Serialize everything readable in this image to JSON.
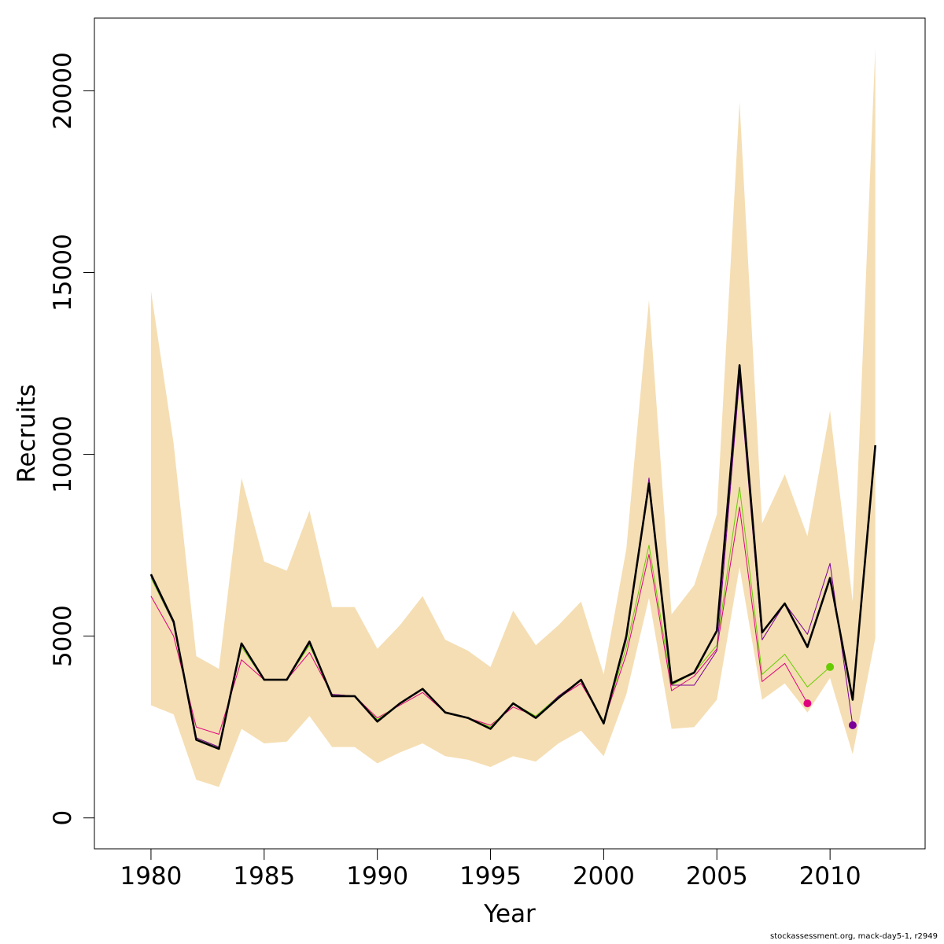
{
  "chart_data": {
    "type": "line",
    "xlabel": "Year",
    "ylabel": "Recruits",
    "xlim": [
      1977.5,
      2014.2
    ],
    "ylim": [
      -850,
      22000
    ],
    "xticks": [
      1980,
      1985,
      1990,
      1995,
      2000,
      2005,
      2010
    ],
    "yticks": [
      0,
      5000,
      10000,
      15000,
      20000
    ],
    "grid": false,
    "legend": "none",
    "band": {
      "color": "#F5DEB3",
      "x": [
        1980,
        1981,
        1982,
        1983,
        1984,
        1985,
        1986,
        1987,
        1988,
        1989,
        1990,
        1991,
        1992,
        1993,
        1994,
        1995,
        1996,
        1997,
        1998,
        1999,
        2000,
        2001,
        2002,
        2003,
        2004,
        2005,
        2006,
        2007,
        2008,
        2009,
        2010,
        2011,
        2012
      ],
      "upper": [
        14500,
        10300,
        4450,
        4100,
        9350,
        7050,
        6800,
        8450,
        5800,
        5800,
        4650,
        5300,
        6100,
        4900,
        4600,
        4150,
        5700,
        4750,
        5300,
        5950,
        3950,
        7400,
        14250,
        5600,
        6400,
        8350,
        19700,
        8100,
        9450,
        7750,
        11200,
        5950,
        21200
      ],
      "lower": [
        3100,
        2850,
        1050,
        850,
        2450,
        2050,
        2100,
        2800,
        1950,
        1950,
        1500,
        1800,
        2050,
        1700,
        1600,
        1400,
        1700,
        1550,
        2050,
        2400,
        1700,
        3400,
        6050,
        2450,
        2500,
        3250,
        6900,
        3250,
        3700,
        2900,
        3850,
        1750,
        4950
      ]
    },
    "series": [
      {
        "color": "#E0007F",
        "x": [
          1980,
          1981,
          1982,
          1983,
          1984,
          1985,
          1986,
          1987,
          1988,
          1989,
          1990,
          1991,
          1992,
          1993,
          1994,
          1995,
          1996,
          1997,
          1998,
          1999,
          2000,
          2001,
          2002,
          2003,
          2004,
          2005,
          2006,
          2007,
          2008,
          2009
        ],
        "values": [
          6100,
          5000,
          2500,
          2300,
          4350,
          3800,
          3800,
          4550,
          3400,
          3350,
          2750,
          3100,
          3450,
          2900,
          2750,
          2550,
          3050,
          2800,
          3300,
          3700,
          2650,
          4500,
          7250,
          3500,
          3900,
          4650,
          8550,
          3750,
          4250,
          3150
        ]
      },
      {
        "color": "#66CC00",
        "x": [
          1980,
          1981,
          1982,
          1983,
          1984,
          1985,
          1986,
          1987,
          1988,
          1989,
          1990,
          1991,
          1992,
          1993,
          1994,
          1995,
          1996,
          1997,
          1998,
          1999,
          2000,
          2001,
          2002,
          2003,
          2004,
          2005,
          2006,
          2007,
          2008,
          2009,
          2010
        ],
        "values": [
          6600,
          5350,
          2200,
          1950,
          4700,
          3800,
          3800,
          4750,
          3400,
          3350,
          2700,
          3150,
          3550,
          2900,
          2750,
          2500,
          3150,
          2800,
          3350,
          3800,
          2650,
          4700,
          7500,
          3650,
          4000,
          4750,
          9100,
          3950,
          4500,
          3600,
          4150
        ]
      },
      {
        "color": "#7A0099",
        "x": [
          1980,
          1981,
          1982,
          1983,
          1984,
          1985,
          1986,
          1987,
          1988,
          1989,
          1990,
          1991,
          1992,
          1993,
          1994,
          1995,
          1996,
          1997,
          1998,
          1999,
          2000,
          2001,
          2002,
          2003,
          2004,
          2005,
          2006,
          2007,
          2008,
          2009,
          2010,
          2011
        ],
        "values": [
          6650,
          5350,
          2200,
          1950,
          4800,
          3800,
          3800,
          4800,
          3400,
          3350,
          2650,
          3150,
          3550,
          2900,
          2750,
          2450,
          3150,
          2750,
          3350,
          3800,
          2600,
          4900,
          9350,
          3650,
          3650,
          4600,
          12100,
          4900,
          5900,
          5050,
          7000,
          2550
        ]
      },
      {
        "color": "#000000",
        "x": [
          1980,
          1981,
          1982,
          1983,
          1984,
          1985,
          1986,
          1987,
          1988,
          1989,
          1990,
          1991,
          1992,
          1993,
          1994,
          1995,
          1996,
          1997,
          1998,
          1999,
          2000,
          2001,
          2002,
          2003,
          2004,
          2005,
          2006,
          2007,
          2008,
          2009,
          2010,
          2011,
          2012
        ],
        "values": [
          6700,
          5400,
          2150,
          1900,
          4800,
          3800,
          3800,
          4850,
          3350,
          3350,
          2650,
          3150,
          3550,
          2900,
          2750,
          2450,
          3150,
          2750,
          3300,
          3800,
          2600,
          5000,
          9200,
          3700,
          4000,
          5150,
          12450,
          5100,
          5900,
          4700,
          6600,
          3250,
          10250
        ]
      }
    ],
    "endpoints": [
      {
        "x": 2009,
        "y": 3150,
        "color": "#E0007F"
      },
      {
        "x": 2010,
        "y": 4150,
        "color": "#66CC00"
      },
      {
        "x": 2011,
        "y": 2550,
        "color": "#7A0099"
      }
    ],
    "footer": "stockassessment.org, mack-day5-1, r2949"
  }
}
